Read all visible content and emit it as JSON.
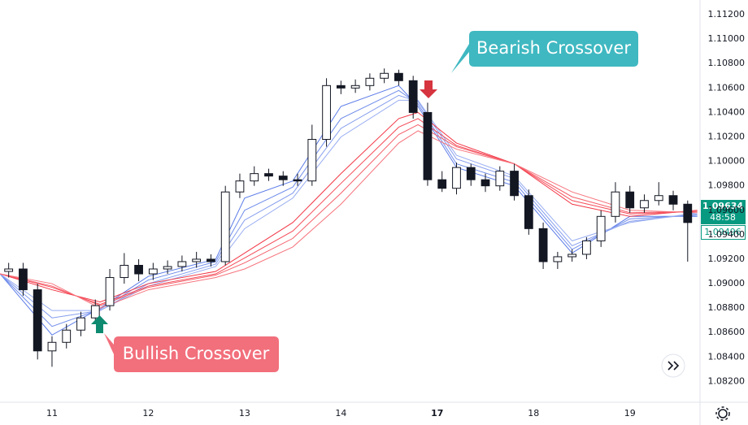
{
  "chart_data": {
    "type": "candlestick",
    "xlim": [
      -0.54,
      6.72
    ],
    "ylim": [
      1.0803,
      1.1132
    ],
    "xticks": [
      {
        "value": 0,
        "label": "11"
      },
      {
        "value": 1,
        "label": "12"
      },
      {
        "value": 2,
        "label": "13"
      },
      {
        "value": 3,
        "label": "14"
      },
      {
        "value": 4,
        "label": "17"
      },
      {
        "value": 5,
        "label": "18"
      },
      {
        "value": 6,
        "label": "19"
      }
    ],
    "yticks": [
      {
        "value": 1.082,
        "label": "1.08200"
      },
      {
        "value": 1.084,
        "label": "1.08400"
      },
      {
        "value": 1.086,
        "label": "1.08600"
      },
      {
        "value": 1.088,
        "label": "1.08800"
      },
      {
        "value": 1.09,
        "label": "1.09000"
      },
      {
        "value": 1.092,
        "label": "1.09200"
      },
      {
        "value": 1.094,
        "label": "1.09400"
      },
      {
        "value": 1.096,
        "label": "1.09600"
      },
      {
        "value": 1.098,
        "label": "1.09800"
      },
      {
        "value": 1.1,
        "label": "1.10000"
      },
      {
        "value": 1.102,
        "label": "1.10200"
      },
      {
        "value": 1.104,
        "label": "1.10400"
      },
      {
        "value": 1.106,
        "label": "1.10600"
      },
      {
        "value": 1.108,
        "label": "1.10800"
      },
      {
        "value": 1.11,
        "label": "1.11000"
      },
      {
        "value": 1.112,
        "label": "1.11200"
      }
    ],
    "up_color": "#ffffff",
    "down_color": "#131722",
    "wick_color": "#131722",
    "x": [
      -0.45,
      -0.3,
      -0.15,
      0,
      0.15,
      0.3,
      0.45,
      0.6,
      0.75,
      0.9,
      1.05,
      1.2,
      1.35,
      1.5,
      1.65,
      1.8,
      1.95,
      2.1,
      2.25,
      2.4,
      2.55,
      2.7,
      2.85,
      3.0,
      3.15,
      3.3,
      3.45,
      3.6,
      3.75,
      3.9,
      4.05,
      4.2,
      4.35,
      4.5,
      4.65,
      4.8,
      4.95,
      5.1,
      5.25,
      5.4,
      5.55,
      5.7,
      5.85,
      6.0,
      6.15,
      6.3,
      6.45,
      6.6
    ],
    "open": [
      1.091,
      1.0912,
      1.0895,
      1.0845,
      1.0852,
      1.0862,
      1.0872,
      1.0882,
      1.0905,
      1.0915,
      1.0908,
      1.0912,
      1.0914,
      1.0918,
      1.092,
      1.0918,
      1.0975,
      1.0984,
      1.099,
      1.0988,
      1.0985,
      1.0984,
      1.1018,
      1.1062,
      1.106,
      1.1062,
      1.1068,
      1.1072,
      1.1066,
      1.104,
      1.0985,
      1.0978,
      1.0995,
      1.0985,
      1.098,
      1.0992,
      1.0972,
      1.0945,
      1.0918,
      1.0922,
      1.0924,
      1.0935,
      1.0955,
      1.0975,
      1.0962,
      1.0968,
      1.0972,
      1.0965
    ],
    "high": [
      1.0917,
      1.0917,
      1.09,
      1.0857,
      1.0867,
      1.0877,
      1.0887,
      1.0912,
      1.0925,
      1.092,
      1.0917,
      1.0919,
      1.0923,
      1.0926,
      1.0924,
      1.098,
      1.099,
      1.0996,
      1.0994,
      1.0992,
      1.099,
      1.103,
      1.1068,
      1.1066,
      1.1067,
      1.1072,
      1.1076,
      1.1075,
      1.107,
      1.1048,
      1.0992,
      1.0999,
      1.0998,
      1.099,
      1.0996,
      1.0998,
      1.0977,
      1.095,
      1.0926,
      1.0928,
      1.0938,
      1.096,
      1.0983,
      1.098,
      1.0973,
      1.0983,
      1.0976,
      1.0968
    ],
    "low": [
      1.0905,
      1.089,
      1.0838,
      1.0832,
      1.0847,
      1.0857,
      1.0867,
      1.0878,
      1.09,
      1.0902,
      1.0903,
      1.0908,
      1.091,
      1.0913,
      1.0914,
      1.0915,
      1.097,
      1.098,
      1.0984,
      1.098,
      1.098,
      1.098,
      1.1012,
      1.1055,
      1.1056,
      1.1058,
      1.1064,
      1.1062,
      1.1035,
      1.098,
      1.0975,
      1.0973,
      1.098,
      1.0975,
      1.0976,
      1.0968,
      1.094,
      1.0912,
      1.0912,
      1.0918,
      1.092,
      1.093,
      1.095,
      1.0958,
      1.0958,
      1.0964,
      1.096,
      1.0918
    ],
    "close": [
      1.0912,
      1.0895,
      1.0845,
      1.0852,
      1.0862,
      1.0872,
      1.0882,
      1.0905,
      1.0915,
      1.0908,
      1.0912,
      1.0914,
      1.0918,
      1.092,
      1.0918,
      1.0975,
      1.0984,
      1.099,
      1.0988,
      1.0985,
      1.0984,
      1.1018,
      1.1062,
      1.106,
      1.1062,
      1.1068,
      1.1072,
      1.1066,
      1.104,
      1.0985,
      1.0978,
      1.0995,
      1.0985,
      1.098,
      1.0992,
      1.0972,
      1.0945,
      1.0918,
      1.0922,
      1.0924,
      1.0935,
      1.0955,
      1.0975,
      1.0962,
      1.0968,
      1.0972,
      1.0965,
      1.095
    ],
    "lines": {
      "x": [
        -0.54,
        0,
        0.5,
        1.0,
        1.7,
        2.0,
        2.5,
        3.0,
        3.6,
        3.8,
        4.2,
        4.8,
        5.4,
        6.0,
        6.7
      ],
      "series": [
        {
          "color": "#5b7be8",
          "values": [
            1.0908,
            1.0858,
            1.088,
            1.0906,
            1.092,
            1.097,
            1.0984,
            1.1045,
            1.1062,
            1.1045,
            1.0995,
            1.098,
            1.0925,
            1.0955,
            1.0955
          ]
        },
        {
          "color": "#6f8cea",
          "values": [
            1.0908,
            1.0865,
            1.0879,
            1.0903,
            1.0918,
            1.096,
            1.0979,
            1.1035,
            1.1058,
            1.1047,
            1.0998,
            1.0983,
            1.0928,
            1.0953,
            1.0956
          ]
        },
        {
          "color": "#849cee",
          "values": [
            1.0908,
            1.0872,
            1.0878,
            1.09,
            1.0916,
            1.0952,
            1.0974,
            1.1027,
            1.1054,
            1.1049,
            1.1002,
            1.0986,
            1.0931,
            1.0951,
            1.0957
          ]
        },
        {
          "color": "#98adf1",
          "values": [
            1.0908,
            1.0878,
            1.0878,
            1.0898,
            1.0914,
            1.0945,
            1.097,
            1.102,
            1.105,
            1.105,
            1.1005,
            1.0988,
            1.0935,
            1.095,
            1.0958
          ]
        },
        {
          "color": "#f23645",
          "values": [
            1.0908,
            1.0895,
            1.0885,
            1.09,
            1.091,
            1.0925,
            1.095,
            1.099,
            1.1035,
            1.104,
            1.1015,
            1.0998,
            1.0965,
            1.0955,
            1.096
          ]
        },
        {
          "color": "#f44b58",
          "values": [
            1.0908,
            1.0897,
            1.0883,
            1.0898,
            1.0908,
            1.0921,
            1.0943,
            1.0982,
            1.1028,
            1.1035,
            1.1013,
            1.0998,
            1.0968,
            1.0957,
            1.0959
          ]
        },
        {
          "color": "#f45f6a",
          "values": [
            1.0908,
            1.0898,
            1.0882,
            1.0897,
            1.0907,
            1.0917,
            1.0937,
            1.0974,
            1.1022,
            1.103,
            1.1012,
            1.0998,
            1.0971,
            1.0958,
            1.0959
          ]
        },
        {
          "color": "#f6747d",
          "values": [
            1.0908,
            1.09,
            1.088,
            1.0895,
            1.0905,
            1.0912,
            1.093,
            1.0965,
            1.1015,
            1.1025,
            1.101,
            1.0998,
            1.0975,
            1.096,
            1.0958
          ]
        }
      ]
    },
    "annotations": {
      "bearish": "Bearish Crossover",
      "bullish": "Bullish Crossover"
    },
    "last_price": 1.09634,
    "countdown": "48:58",
    "second_price": 1.09496
  }
}
